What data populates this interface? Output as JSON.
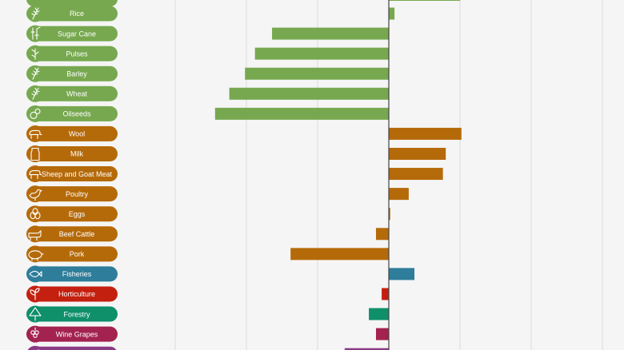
{
  "chart_data": {
    "type": "bar",
    "orientation": "horizontal",
    "title": "",
    "xlabel": "",
    "ylabel": "",
    "xlim": [
      -27,
      16
    ],
    "grid": true,
    "legend": "none",
    "categories": [
      {
        "label": "Rice",
        "value": 0.4,
        "group": "crops",
        "icon": "rice-icon"
      },
      {
        "label": "Sugar Cane",
        "value": -8.2,
        "group": "crops",
        "icon": "sugar-cane-icon"
      },
      {
        "label": "Pulses",
        "value": -9.4,
        "group": "crops",
        "icon": "pulses-icon"
      },
      {
        "label": "Barley",
        "value": -10.1,
        "group": "crops",
        "icon": "barley-icon"
      },
      {
        "label": "Wheat",
        "value": -11.2,
        "group": "crops",
        "icon": "wheat-icon"
      },
      {
        "label": "Oilseeds",
        "value": -12.2,
        "group": "crops",
        "icon": "oilseeds-icon"
      },
      {
        "label": "Wool",
        "value": 5.1,
        "group": "livestock",
        "icon": "sheep-icon"
      },
      {
        "label": "Milk",
        "value": 4.0,
        "group": "livestock",
        "icon": "milk-icon"
      },
      {
        "label": "Sheep and Goat Meat",
        "value": 3.8,
        "group": "livestock",
        "icon": "goat-icon"
      },
      {
        "label": "Poultry",
        "value": 1.4,
        "group": "livestock",
        "icon": "chicken-icon"
      },
      {
        "label": "Eggs",
        "value": 0.1,
        "group": "livestock",
        "icon": "eggs-icon"
      },
      {
        "label": "Beef Cattle",
        "value": -0.9,
        "group": "livestock",
        "icon": "cow-icon"
      },
      {
        "label": "Pork",
        "value": -6.9,
        "group": "livestock",
        "icon": "pig-icon"
      },
      {
        "label": "Fisheries",
        "value": 1.8,
        "group": "fisheries",
        "icon": "fish-icon"
      },
      {
        "label": "Horticulture",
        "value": -0.5,
        "group": "horticulture",
        "icon": "plant-icon"
      },
      {
        "label": "Forestry",
        "value": -1.4,
        "group": "forestry",
        "icon": "tree-icon"
      },
      {
        "label": "Wine Grapes",
        "value": -0.9,
        "group": "wine",
        "icon": "grapes-icon"
      },
      {
        "label": "",
        "value": -3.1,
        "group": "other",
        "icon": "leaf-icon"
      }
    ]
  },
  "colors": {
    "crops": "#77a84f",
    "livestock": "#b56a0a",
    "fisheries": "#2e7d9a",
    "horticulture": "#c4200f",
    "forestry": "#0f8f6a",
    "wine": "#a3224f",
    "other": "#8a3b86",
    "grid": "#dcdcdc",
    "zero_line": "#444444",
    "background": "#f5f5f5"
  }
}
